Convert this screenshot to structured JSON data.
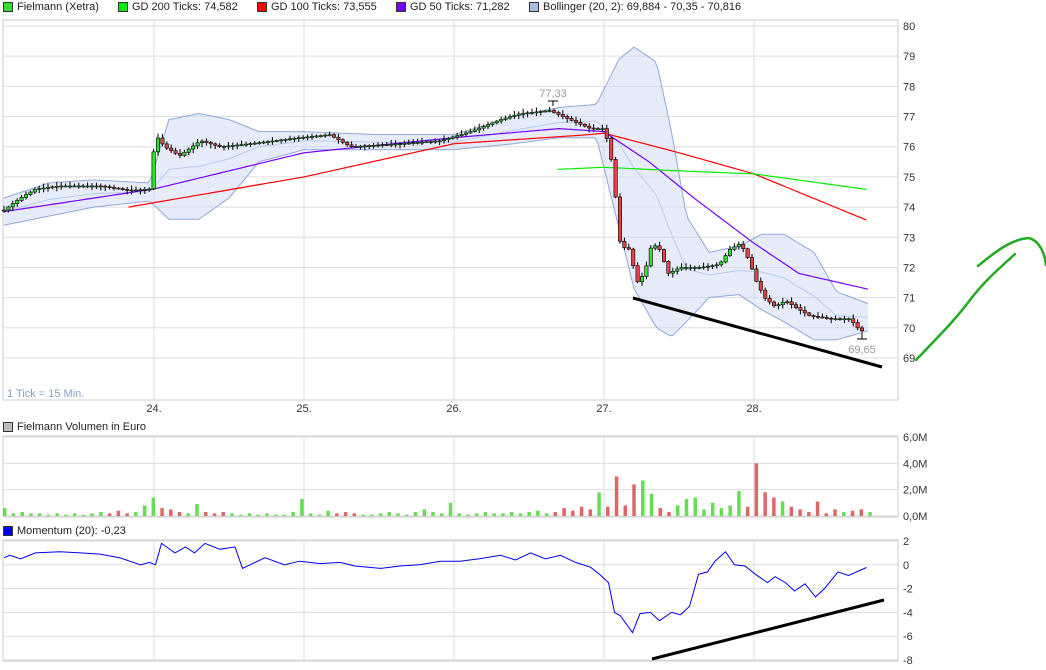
{
  "legend": [
    {
      "label": "Fielmann (Xetra)",
      "color": "#33dd33"
    },
    {
      "label": "GD 200 Ticks: 74,582",
      "color": "#00ee00"
    },
    {
      "label": "GD 100 Ticks: 73,555",
      "color": "#ff0000"
    },
    {
      "label": "GD 50 Ticks: 71,282",
      "color": "#7700ff"
    },
    {
      "label": "Bollinger (20, 2): 69,884 - 70,35 - 70,816",
      "color": "#a8bce8"
    }
  ],
  "tick_note": "1 Tick = 15 Min.",
  "volume_title": "Fielmann Volumen in Euro",
  "momentum_title": "Momentum (20): -0,23",
  "chart_data": [
    {
      "type": "candlestick",
      "x_ticks": [
        "24.",
        "25.",
        "26.",
        "27.",
        "28."
      ],
      "x_tick_days": [
        24,
        25,
        26,
        27,
        28
      ],
      "y_ticks": [
        "69",
        "70",
        "71",
        "72",
        "73",
        "74",
        "75",
        "76",
        "77",
        "78",
        "79",
        "80"
      ],
      "ylim": [
        68.8,
        80.2
      ],
      "grid": true,
      "annotations": {
        "high": "77,33",
        "low": "69,65"
      },
      "close_path": [
        [
          23.0,
          73.9
        ],
        [
          23.11,
          74.3
        ],
        [
          23.21,
          74.6
        ],
        [
          23.37,
          74.7
        ],
        [
          23.64,
          74.7
        ],
        [
          23.84,
          74.55
        ],
        [
          23.97,
          74.6
        ],
        [
          24.01,
          76.4
        ],
        [
          24.07,
          76.0
        ],
        [
          24.17,
          75.7
        ],
        [
          24.31,
          76.2
        ],
        [
          24.44,
          76.0
        ],
        [
          24.64,
          76.1
        ],
        [
          24.97,
          76.3
        ],
        [
          25.17,
          76.4
        ],
        [
          25.31,
          76.0
        ],
        [
          25.64,
          76.1
        ],
        [
          25.91,
          76.2
        ],
        [
          26.11,
          76.5
        ],
        [
          26.31,
          76.9
        ],
        [
          26.44,
          77.1
        ],
        [
          26.64,
          77.2
        ],
        [
          26.77,
          76.9
        ],
        [
          26.91,
          76.6
        ],
        [
          27.0,
          76.6
        ],
        [
          27.04,
          75.9
        ],
        [
          27.07,
          74.7
        ],
        [
          27.11,
          72.7
        ],
        [
          27.17,
          72.6
        ],
        [
          27.22,
          71.5
        ],
        [
          27.27,
          71.8
        ],
        [
          27.32,
          72.8
        ],
        [
          27.37,
          72.6
        ],
        [
          27.43,
          71.8
        ],
        [
          27.51,
          72.0
        ],
        [
          27.64,
          72.0
        ],
        [
          27.77,
          72.1
        ],
        [
          27.84,
          72.6
        ],
        [
          27.91,
          72.8
        ],
        [
          27.97,
          72.2
        ],
        [
          28.01,
          71.6
        ],
        [
          28.07,
          71.0
        ],
        [
          28.14,
          70.7
        ],
        [
          28.21,
          70.9
        ],
        [
          28.27,
          70.7
        ],
        [
          28.37,
          70.4
        ],
        [
          28.51,
          70.3
        ],
        [
          28.64,
          70.3
        ],
        [
          28.69,
          70.0
        ],
        [
          28.72,
          69.9
        ],
        [
          28.76,
          70.05
        ]
      ],
      "gd200": [
        [
          26.69,
          75.25
        ],
        [
          27.0,
          75.32
        ],
        [
          27.5,
          75.2
        ],
        [
          28.0,
          75.1
        ],
        [
          28.76,
          74.58
        ]
      ],
      "gd100": [
        [
          23.83,
          74.0
        ],
        [
          25.0,
          75.0
        ],
        [
          26.0,
          76.1
        ],
        [
          26.9,
          76.4
        ],
        [
          27.0,
          76.45
        ],
        [
          27.5,
          75.8
        ],
        [
          28.0,
          75.1
        ],
        [
          28.76,
          73.55
        ]
      ],
      "gd50": [
        [
          23.0,
          73.85
        ],
        [
          24.0,
          74.6
        ],
        [
          25.0,
          75.8
        ],
        [
          26.0,
          76.3
        ],
        [
          26.7,
          76.6
        ],
        [
          27.0,
          76.5
        ],
        [
          27.3,
          75.5
        ],
        [
          27.6,
          74.3
        ],
        [
          28.0,
          72.8
        ],
        [
          28.3,
          71.8
        ],
        [
          28.76,
          71.28
        ]
      ],
      "bollinger": [
        [
          23.0,
          74.3,
          73.4
        ],
        [
          23.3,
          74.8,
          73.7
        ],
        [
          23.6,
          74.9,
          74.0
        ],
        [
          23.97,
          74.8,
          74.2
        ],
        [
          24.1,
          76.9,
          73.6
        ],
        [
          24.3,
          77.1,
          73.6
        ],
        [
          24.5,
          76.9,
          74.3
        ],
        [
          24.7,
          76.5,
          75.5
        ],
        [
          25.0,
          76.5,
          75.9
        ],
        [
          25.5,
          76.4,
          75.9
        ],
        [
          26.0,
          76.4,
          75.9
        ],
        [
          26.4,
          77.0,
          76.1
        ],
        [
          26.7,
          77.3,
          76.3
        ],
        [
          26.95,
          77.4,
          76.3
        ],
        [
          27.1,
          78.9,
          73.3
        ],
        [
          27.2,
          79.3,
          71.3
        ],
        [
          27.35,
          78.8,
          70.0
        ],
        [
          27.45,
          76.5,
          69.7
        ],
        [
          27.55,
          73.7,
          70.2
        ],
        [
          27.7,
          72.5,
          71.0
        ],
        [
          27.9,
          72.7,
          71.1
        ],
        [
          28.05,
          73.1,
          70.6
        ],
        [
          28.2,
          73.1,
          70.2
        ],
        [
          28.4,
          72.5,
          69.6
        ],
        [
          28.55,
          71.2,
          69.6
        ],
        [
          28.76,
          70.8,
          69.9
        ]
      ]
    },
    {
      "type": "bar",
      "title": "Fielmann Volumen in Euro",
      "y_ticks": [
        "0,0M",
        "2,0M",
        "4,0M",
        "6,0M"
      ],
      "ylim": [
        0,
        6
      ],
      "values_m": [
        0.6,
        0.2,
        0.3,
        0.2,
        0.2,
        0.1,
        0.2,
        0.1,
        0.2,
        0.1,
        0.2,
        0.3,
        0.2,
        0.4,
        0.2,
        0.3,
        0.8,
        1.4,
        0.6,
        0.5,
        0.3,
        0.2,
        0.9,
        0.3,
        0.2,
        0.3,
        0.2,
        0.1,
        0.2,
        0.1,
        0.2,
        0.1,
        0.1,
        0.3,
        1.3,
        0.2,
        0.1,
        0.4,
        0.2,
        0.3,
        0.2,
        0.1,
        0.1,
        0.2,
        0.3,
        0.2,
        0.1,
        0.3,
        0.5,
        0.3,
        0.2,
        1.0,
        0.2,
        0.1,
        0.2,
        0.3,
        0.2,
        0.2,
        0.3,
        0.2,
        0.3,
        0.4,
        0.2,
        0.3,
        0.6,
        0.4,
        0.7,
        0.5,
        1.8,
        0.7,
        3.0,
        0.8,
        2.4,
        2.7,
        1.7,
        0.6,
        0.3,
        0.8,
        1.3,
        1.4,
        0.5,
        1.0,
        0.6,
        0.8,
        1.9,
        0.7,
        4.0,
        1.8,
        1.4,
        1.1,
        0.7,
        0.5,
        0.3,
        1.1,
        0.2,
        0.5,
        0.3,
        0.4,
        0.5,
        0.3
      ]
    },
    {
      "type": "line",
      "title": "Momentum (20): -0,23",
      "y_ticks": [
        "2",
        "0",
        "-2",
        "-4",
        "-6",
        "-8"
      ],
      "ylim": [
        -8,
        2
      ],
      "points": [
        [
          23.0,
          0.6
        ],
        [
          23.04,
          0.8
        ],
        [
          23.11,
          0.5
        ],
        [
          23.21,
          1.0
        ],
        [
          23.37,
          1.1
        ],
        [
          23.51,
          1.0
        ],
        [
          23.64,
          0.9
        ],
        [
          23.77,
          0.6
        ],
        [
          23.91,
          0.0
        ],
        [
          23.97,
          0.2
        ],
        [
          24.01,
          0.0
        ],
        [
          24.05,
          1.8
        ],
        [
          24.14,
          1.0
        ],
        [
          24.21,
          1.5
        ],
        [
          24.27,
          1.0
        ],
        [
          24.34,
          1.8
        ],
        [
          24.44,
          1.3
        ],
        [
          24.54,
          1.5
        ],
        [
          24.59,
          -0.3
        ],
        [
          24.64,
          0.0
        ],
        [
          24.74,
          0.6
        ],
        [
          24.87,
          0.0
        ],
        [
          24.97,
          0.3
        ],
        [
          25.11,
          0.1
        ],
        [
          25.24,
          0.2
        ],
        [
          25.34,
          -0.1
        ],
        [
          25.51,
          -0.3
        ],
        [
          25.64,
          -0.1
        ],
        [
          25.77,
          0.0
        ],
        [
          25.91,
          0.3
        ],
        [
          26.04,
          0.3
        ],
        [
          26.17,
          0.5
        ],
        [
          26.31,
          0.8
        ],
        [
          26.41,
          0.4
        ],
        [
          26.51,
          1.0
        ],
        [
          26.61,
          0.5
        ],
        [
          26.71,
          0.8
        ],
        [
          26.81,
          0.2
        ],
        [
          26.91,
          -0.2
        ],
        [
          26.97,
          -0.8
        ],
        [
          27.03,
          -1.5
        ],
        [
          27.07,
          -4.0
        ],
        [
          27.11,
          -4.3
        ],
        [
          27.19,
          -5.7
        ],
        [
          27.24,
          -4.1
        ],
        [
          27.31,
          -4.0
        ],
        [
          27.37,
          -4.7
        ],
        [
          27.45,
          -4.0
        ],
        [
          27.51,
          -4.2
        ],
        [
          27.57,
          -3.5
        ],
        [
          27.63,
          -0.8
        ],
        [
          27.69,
          -0.6
        ],
        [
          27.74,
          0.3
        ],
        [
          27.81,
          1.1
        ],
        [
          27.87,
          0.0
        ],
        [
          27.94,
          -0.1
        ],
        [
          28.01,
          -0.8
        ],
        [
          28.09,
          -1.5
        ],
        [
          28.14,
          -1.0
        ],
        [
          28.21,
          -1.5
        ],
        [
          28.27,
          -2.2
        ],
        [
          28.34,
          -1.6
        ],
        [
          28.41,
          -2.7
        ],
        [
          28.47,
          -2.0
        ],
        [
          28.56,
          -0.6
        ],
        [
          28.63,
          -0.9
        ],
        [
          28.75,
          -0.23
        ]
      ]
    }
  ]
}
